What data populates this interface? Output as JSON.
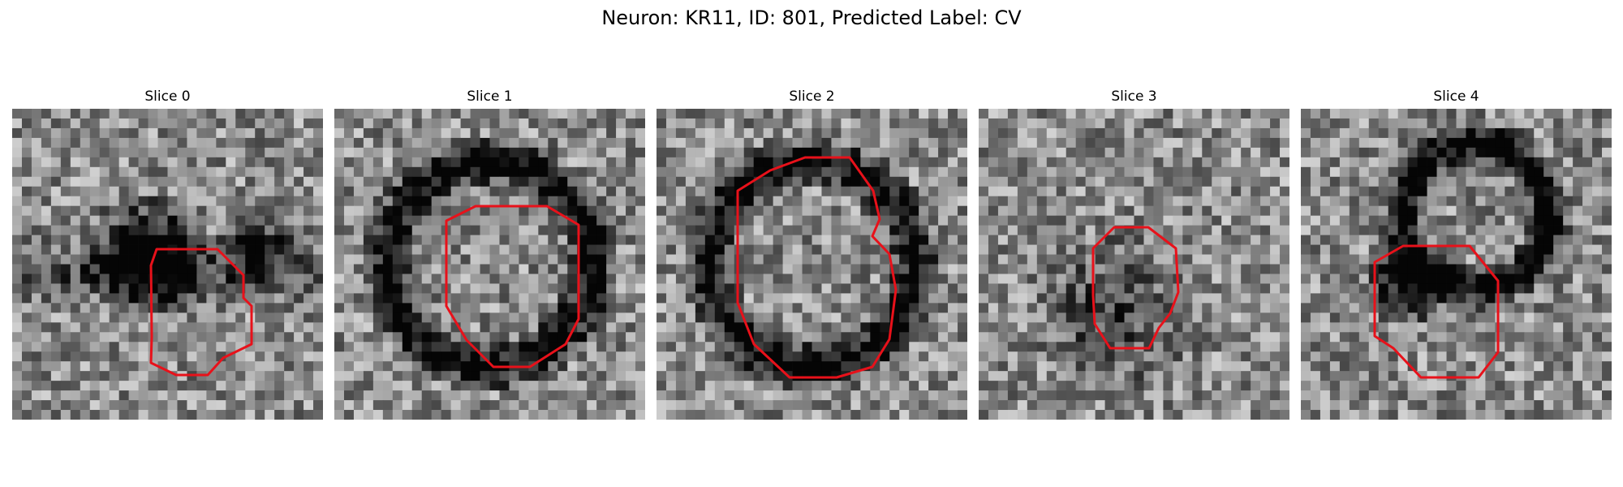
{
  "figure": {
    "title": "Neuron: KR11, ID: 801, Predicted Label: CV"
  },
  "colors": {
    "contour": "#e8111a",
    "background": "#ffffff"
  },
  "image_grid": {
    "rows": 32,
    "cols": 32,
    "colormap": "gray"
  },
  "slices": [
    {
      "label": "Slice 0",
      "seed": 11,
      "dark_feature": "blob"
    },
    {
      "label": "Slice 1",
      "seed": 23,
      "dark_feature": "ring"
    },
    {
      "label": "Slice 2",
      "seed": 37,
      "dark_feature": "ring"
    },
    {
      "label": "Slice 3",
      "seed": 41,
      "dark_feature": "faint"
    },
    {
      "label": "Slice 4",
      "seed": 59,
      "dark_feature": "arc"
    }
  ]
}
